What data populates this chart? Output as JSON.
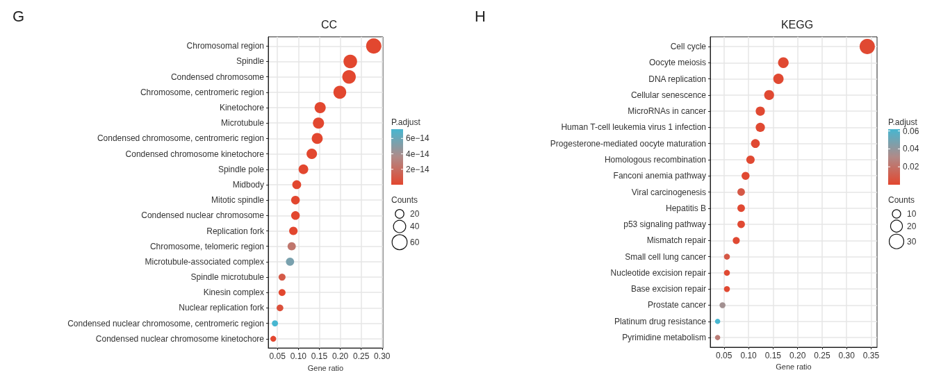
{
  "chart_data": [
    {
      "type": "bubble",
      "title": "CC",
      "xlabel": "Gene ratio",
      "clabel": "P.adjust",
      "legend_title": "Counts",
      "annotations": [
        "G"
      ],
      "orientation": "horizontal",
      "grid": true,
      "categories": [
        "Chromosomal region",
        "Spindle",
        "Condensed chromosome",
        "Chromosome, centromeric region",
        "Kinetochore",
        "Microtubule",
        "Condensed chromosome, centromeric region",
        "Condensed chromosome kinetochore",
        "Spindle pole",
        "Midbody",
        "Mitotic spindle",
        "Condensed nuclear chromosome",
        "Replication fork",
        "Chromosome, telomeric region",
        "Microtubule-associated complex",
        "Spindle microtubule",
        "Kinesin complex",
        "Nuclear replication fork",
        "Condensed nuclear chromosome, centromeric region",
        "Condensed nuclear chromosome kinetochore"
      ],
      "values": [
        0.28,
        0.224,
        0.221,
        0.199,
        0.152,
        0.148,
        0.145,
        0.132,
        0.112,
        0.096,
        0.093,
        0.093,
        0.088,
        0.084,
        0.08,
        0.061,
        0.061,
        0.056,
        0.044,
        0.04
      ],
      "sizes": [
        62,
        49,
        49,
        44,
        33,
        33,
        32,
        29,
        25,
        21,
        20,
        20,
        19,
        18,
        18,
        13,
        13,
        12,
        10,
        9
      ],
      "size_legend": [
        20,
        40,
        60
      ],
      "cvalues": [
        0,
        0,
        0,
        0,
        0,
        0,
        0,
        0,
        0,
        0,
        0,
        0,
        0,
        2.5e-14,
        5.5e-14,
        1e-14,
        0,
        5e-15,
        7.2e-14,
        0
      ],
      "clim": [
        0,
        7.2e-14
      ],
      "cticks": [
        {
          "value": 2e-14,
          "label": "2e−14"
        },
        {
          "value": 4e-14,
          "label": "4e−14"
        },
        {
          "value": 6e-14,
          "label": "6e−14"
        }
      ],
      "xlim": [
        0.028,
        0.302
      ],
      "xticks": [
        {
          "value": 0.05,
          "label": "0.05"
        },
        {
          "value": 0.1,
          "label": "0.10"
        },
        {
          "value": 0.15,
          "label": "0.15"
        },
        {
          "value": 0.2,
          "label": "0.20"
        },
        {
          "value": 0.25,
          "label": "0.25"
        },
        {
          "value": 0.3,
          "label": "0.30"
        }
      ]
    },
    {
      "type": "bubble",
      "title": "KEGG",
      "xlabel": "Gene ratio",
      "clabel": "P.adjust",
      "legend_title": "Counts",
      "annotations": [
        "H"
      ],
      "orientation": "horizontal",
      "grid": true,
      "categories": [
        "Cell cycle",
        "Oocyte meiosis",
        "DNA replication",
        "Cellular senescence",
        "MicroRNAs in cancer",
        "Human T-cell leukemia virus 1 infection",
        "Progesterone-mediated oocyte maturation",
        "Homologous recombination",
        "Fanconi anemia pathway",
        "Viral carcinogenesis",
        "Hepatitis B",
        "p53 signaling pathway",
        "Mismatch repair",
        "Small cell lung cancer",
        "Nucleotide excision repair",
        "Base excision repair",
        "Prostate cancer",
        "Platinum drug resistance",
        "Pyrimidine metabolism"
      ],
      "values": [
        0.342,
        0.171,
        0.161,
        0.142,
        0.124,
        0.124,
        0.114,
        0.104,
        0.094,
        0.085,
        0.085,
        0.085,
        0.075,
        0.056,
        0.056,
        0.056,
        0.047,
        0.037,
        0.037
      ],
      "sizes": [
        33,
        16,
        15,
        14,
        12,
        12,
        11,
        10,
        9,
        8,
        8,
        8,
        7,
        5,
        5,
        5,
        5,
        4,
        4
      ],
      "size_legend": [
        10,
        20,
        30
      ],
      "cvalues": [
        0.001,
        0.001,
        0.001,
        0.001,
        0.001,
        0.001,
        0.001,
        0.001,
        0.001,
        0.008,
        0.001,
        0.001,
        0.001,
        0.008,
        0.001,
        0.001,
        0.035,
        0.062,
        0.025
      ],
      "clim": [
        0,
        0.062
      ],
      "cticks": [
        0.02,
        0.04,
        0.06
      ],
      "xlim": [
        0.022,
        0.362
      ],
      "xticks": [
        {
          "value": 0.05,
          "label": "0.05"
        },
        {
          "value": 0.1,
          "label": "0.10"
        },
        {
          "value": 0.15,
          "label": "0.15"
        },
        {
          "value": 0.2,
          "label": "0.20"
        },
        {
          "value": 0.25,
          "label": "0.25"
        },
        {
          "value": 0.3,
          "label": "0.30"
        },
        {
          "value": 0.35,
          "label": "0.35"
        }
      ]
    }
  ]
}
